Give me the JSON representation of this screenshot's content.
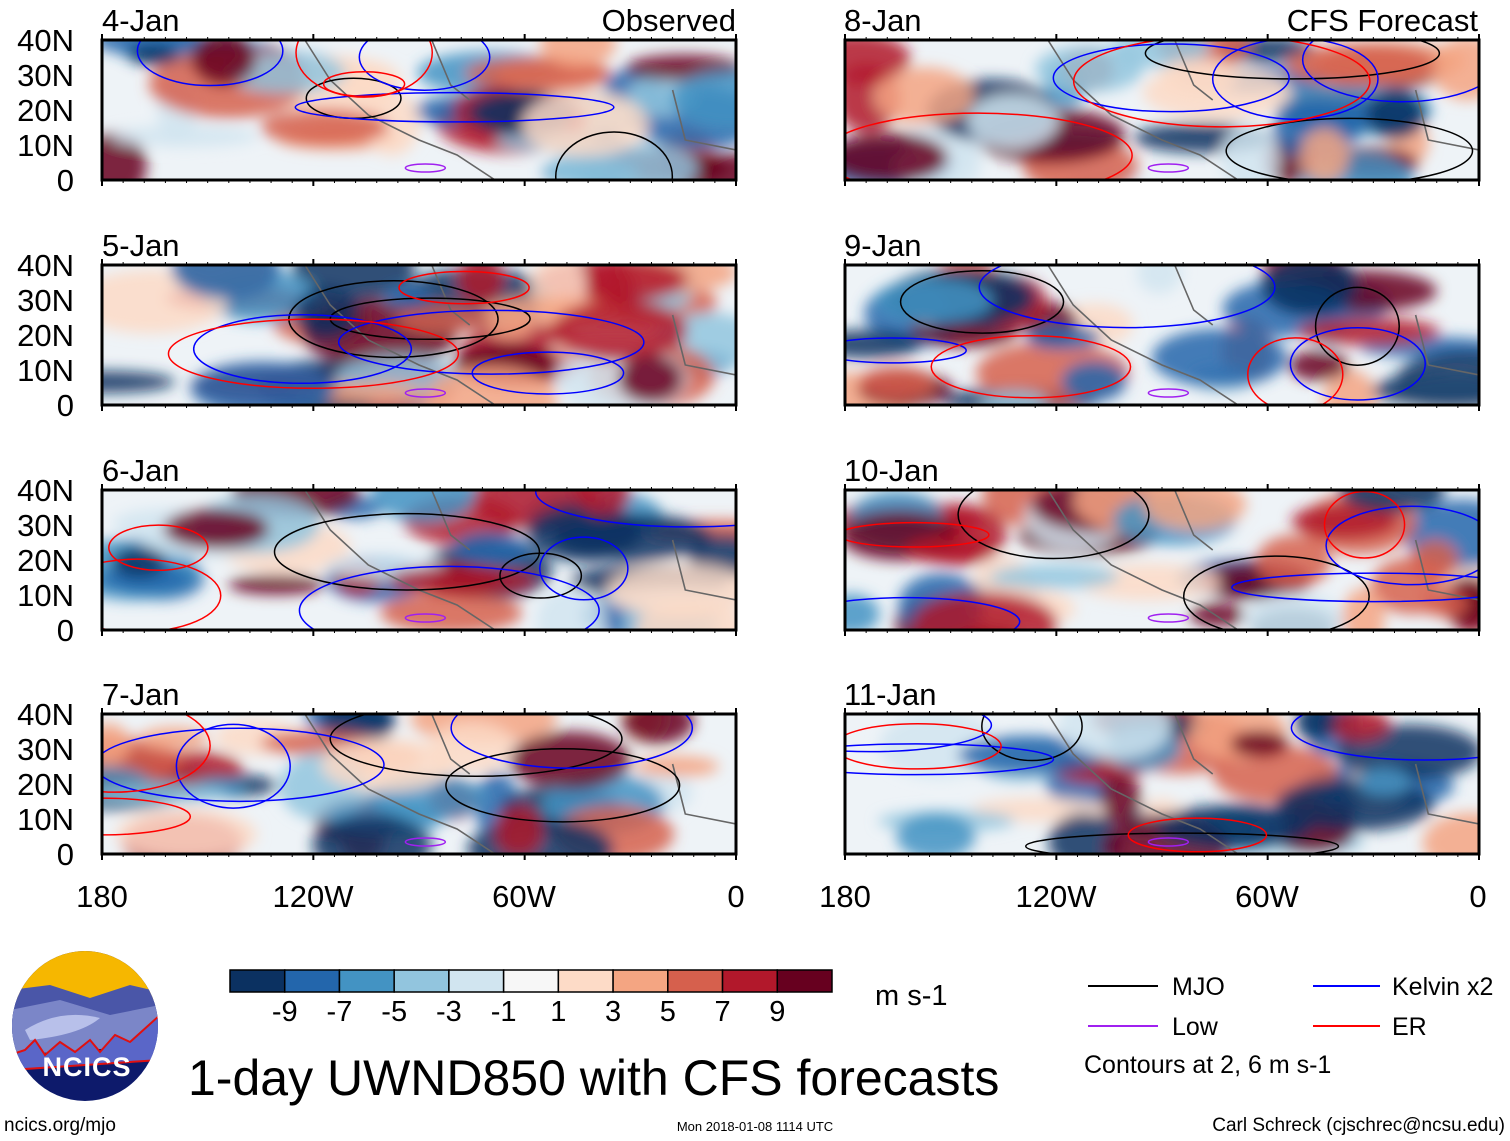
{
  "title": "1-day UWND850 with CFS forecasts",
  "left_column": {
    "header": "Observed",
    "panels": [
      "4-Jan",
      "5-Jan",
      "6-Jan",
      "7-Jan"
    ]
  },
  "right_column": {
    "header": "CFS Forecast",
    "panels": [
      "8-Jan",
      "9-Jan",
      "10-Jan",
      "11-Jan"
    ]
  },
  "lat_labels": [
    "40N",
    "30N",
    "20N",
    "10N",
    "0"
  ],
  "lon_labels": [
    "180",
    "120W",
    "60W",
    "0"
  ],
  "colorbar": {
    "ticks": [
      "-9",
      "-7",
      "-5",
      "-3",
      "-1",
      "1",
      "3",
      "5",
      "7",
      "9"
    ],
    "colors": [
      "#0b3161",
      "#2366ac",
      "#4393c3",
      "#92c5de",
      "#d1e5f0",
      "#f7f7f7",
      "#fddbc7",
      "#f4a582",
      "#d6604d",
      "#b2182b",
      "#67001f"
    ],
    "units": "m s-1"
  },
  "legend": {
    "items": [
      {
        "label": "MJO",
        "color": "#000000"
      },
      {
        "label": "Kelvin x2",
        "color": "#0000ff"
      },
      {
        "label": "Low",
        "color": "#a020f0"
      },
      {
        "label": "ER",
        "color": "#ff0000"
      }
    ],
    "note": "Contours at 2, 6 m s-1"
  },
  "logo": {
    "text": "NCICS"
  },
  "footer": {
    "url": "ncics.org/mjo",
    "timestamp": "Mon 2018-01-08 1114 UTC",
    "credit": "Carl Schreck (cjschrec@ncsu.edu)"
  }
}
